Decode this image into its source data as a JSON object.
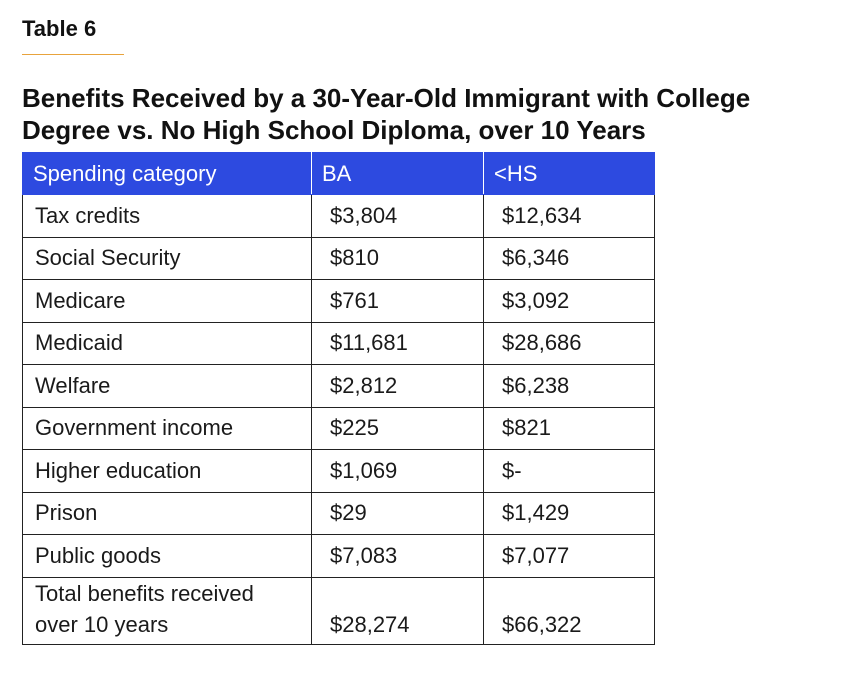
{
  "table_label": "Table 6",
  "title": "Benefits Received by a 30-Year-Old Immigrant with College Degree vs. No High School Diploma, over 10 Years",
  "colors": {
    "header_bg": "#2d4ae0",
    "label_rule": "#e8a33c"
  },
  "table": {
    "headers": [
      "Spending category",
      "BA",
      "<HS"
    ],
    "rows": [
      {
        "category": "Tax credits",
        "ba": "$3,804",
        "hs": "$12,634"
      },
      {
        "category": "Social Security",
        "ba": "$810",
        "hs": "$6,346"
      },
      {
        "category": "Medicare",
        "ba": "$761",
        "hs": "$3,092"
      },
      {
        "category": "Medicaid",
        "ba": "$11,681",
        "hs": "$28,686"
      },
      {
        "category": "Welfare",
        "ba": "$2,812",
        "hs": "$6,238"
      },
      {
        "category": "Government income",
        "ba": "$225",
        "hs": "$821"
      },
      {
        "category": "Higher education",
        "ba": "$1,069",
        "hs": "$-"
      },
      {
        "category": "Prison",
        "ba": "$29",
        "hs": "$1,429"
      },
      {
        "category": "Public goods",
        "ba": "$7,083",
        "hs": "$7,077"
      }
    ],
    "total": {
      "category_line1": "Total benefits received",
      "category_line2": "over 10 years",
      "ba": "$28,274",
      "hs": "$66,322"
    }
  }
}
